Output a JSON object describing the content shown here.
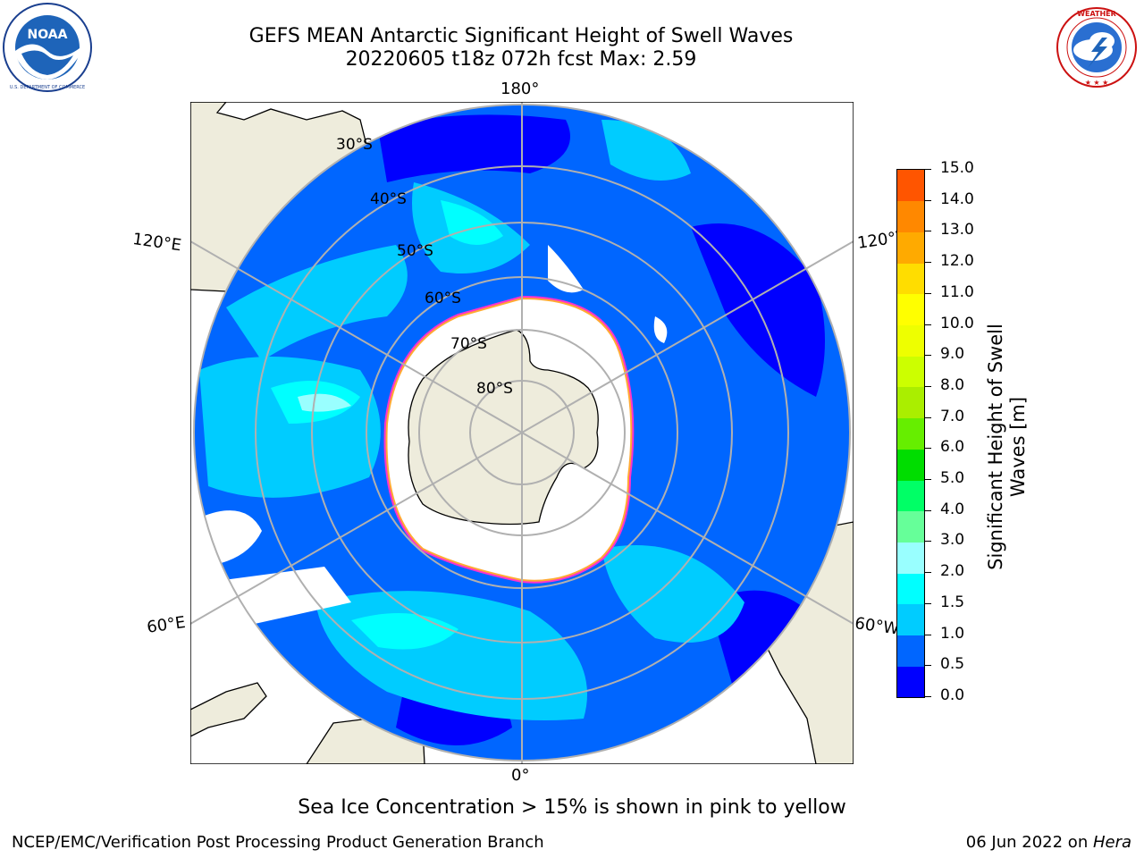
{
  "header": {
    "title_line1": "GEFS MEAN Antarctic Significant Height of Swell Waves",
    "title_line2": "20220605 t18z 072h fcst   Max: 2.59"
  },
  "logos": {
    "left": {
      "name": "noaa-logo",
      "text": "NOAA",
      "ring_text": "NATIONAL OCEANIC AND ATMOSPHERIC ADMINISTRATION · U.S. DEPARTMENT OF COMMERCE"
    },
    "right": {
      "name": "nws-logo",
      "ring_text": "NATIONAL WEATHER SERVICE"
    }
  },
  "map": {
    "longitude_labels": {
      "top": "180°",
      "bottom": "0°",
      "upper_left": "120°E",
      "upper_right": "120°W",
      "lower_left": "60°E",
      "lower_right": "60°W"
    },
    "latitude_labels": [
      "30°S",
      "40°S",
      "50°S",
      "60°S",
      "70°S",
      "80°S"
    ]
  },
  "colorbar": {
    "label": "Significant Height of Swell Waves [m]",
    "label_line1": "Significant Height of Swell",
    "label_line2": "Waves [m]",
    "ticks": [
      "0.0",
      "0.5",
      "1.0",
      "1.5",
      "2.0",
      "3.0",
      "4.0",
      "5.0",
      "6.0",
      "7.0",
      "8.0",
      "9.0",
      "10.0",
      "11.0",
      "12.0",
      "13.0",
      "14.0",
      "15.0"
    ],
    "colors": [
      "#0000ff",
      "#0066ff",
      "#00ccff",
      "#00ffff",
      "#99ffff",
      "#66ff99",
      "#00ff66",
      "#00dd00",
      "#66ee00",
      "#aaee00",
      "#ccff00",
      "#eeff00",
      "#ffff00",
      "#ffdd00",
      "#ffaa00",
      "#ff8800",
      "#ff5500",
      "#ff0000"
    ]
  },
  "map_colors": {
    "land": "#eeecdc",
    "ice": "#ffffff",
    "grid": "#b0b0b0",
    "sea_ice_edge": [
      "#ff33cc",
      "#ffaa33"
    ]
  },
  "note": "Sea Ice Concentration > 15% is shown in pink to yellow",
  "footer": {
    "left": "NCEP/EMC/Verification Post Processing Product Generation Branch",
    "right_date": "06 Jun 2022 on ",
    "right_host": "Hera"
  }
}
